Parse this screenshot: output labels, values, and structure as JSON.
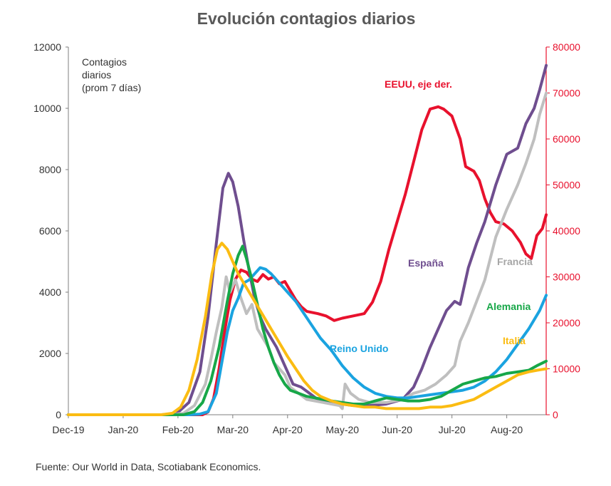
{
  "chart_data": {
    "type": "line",
    "title": "Evolución contagios diarios",
    "note": [
      "Contagios",
      "diarios",
      "(prom 7 días)"
    ],
    "source": "Fuente: Our World in Data, Scotiabank Economics.",
    "x_ticks": [
      "Dec-19",
      "Jan-20",
      "Feb-20",
      "Mar-20",
      "Apr-20",
      "May-20",
      "Jun-20",
      "Jul-20",
      "Aug-20"
    ],
    "x_range": [
      0,
      8.72
    ],
    "y_left": {
      "range": [
        0,
        12000
      ],
      "ticks": [
        "0",
        "2000",
        "4000",
        "6000",
        "8000",
        "10000",
        "12000"
      ]
    },
    "y_right": {
      "range": [
        0,
        80000
      ],
      "ticks": [
        "0",
        "10000",
        "20000",
        "30000",
        "40000",
        "50000",
        "60000",
        "70000",
        "80000"
      ],
      "color": "#e8112d"
    },
    "series": [
      {
        "name": "EEUU, eje der.",
        "axis": "right",
        "color": "#e8112d",
        "points": [
          [
            0,
            0
          ],
          [
            2.3,
            0
          ],
          [
            2.45,
            0
          ],
          [
            2.55,
            600
          ],
          [
            2.65,
            3500
          ],
          [
            2.75,
            10000
          ],
          [
            2.85,
            18000
          ],
          [
            2.95,
            25000
          ],
          [
            3.05,
            29500
          ],
          [
            3.15,
            31500
          ],
          [
            3.25,
            31000
          ],
          [
            3.35,
            29500
          ],
          [
            3.45,
            29000
          ],
          [
            3.55,
            30500
          ],
          [
            3.65,
            29500
          ],
          [
            3.75,
            30000
          ],
          [
            3.85,
            28500
          ],
          [
            3.95,
            29000
          ],
          [
            4.05,
            27000
          ],
          [
            4.15,
            25000
          ],
          [
            4.25,
            23500
          ],
          [
            4.35,
            22500
          ],
          [
            4.55,
            22000
          ],
          [
            4.7,
            21500
          ],
          [
            4.85,
            20500
          ],
          [
            5.0,
            21000
          ],
          [
            5.2,
            21500
          ],
          [
            5.4,
            22000
          ],
          [
            5.55,
            24500
          ],
          [
            5.7,
            29000
          ],
          [
            5.85,
            36000
          ],
          [
            6.0,
            42000
          ],
          [
            6.15,
            48000
          ],
          [
            6.3,
            55000
          ],
          [
            6.45,
            62000
          ],
          [
            6.6,
            66500
          ],
          [
            6.75,
            67000
          ],
          [
            6.85,
            66500
          ],
          [
            7.0,
            65000
          ],
          [
            7.15,
            60000
          ],
          [
            7.25,
            54000
          ],
          [
            7.4,
            53000
          ],
          [
            7.5,
            51000
          ],
          [
            7.6,
            47000
          ],
          [
            7.7,
            44000
          ],
          [
            7.8,
            42000
          ],
          [
            7.95,
            41500
          ],
          [
            8.1,
            40000
          ],
          [
            8.25,
            37500
          ],
          [
            8.35,
            35000
          ],
          [
            8.45,
            34000
          ],
          [
            8.55,
            39000
          ],
          [
            8.65,
            40500
          ],
          [
            8.72,
            43500
          ]
        ]
      },
      {
        "name": "España",
        "axis": "left",
        "color": "#6f4e8f",
        "points": [
          [
            0,
            0
          ],
          [
            1.7,
            0
          ],
          [
            1.85,
            20
          ],
          [
            2.0,
            80
          ],
          [
            2.2,
            400
          ],
          [
            2.4,
            1400
          ],
          [
            2.55,
            3200
          ],
          [
            2.7,
            5600
          ],
          [
            2.82,
            7400
          ],
          [
            2.92,
            7880
          ],
          [
            3.0,
            7600
          ],
          [
            3.1,
            6800
          ],
          [
            3.2,
            5700
          ],
          [
            3.3,
            4700
          ],
          [
            3.4,
            3800
          ],
          [
            3.5,
            3200
          ],
          [
            3.6,
            2800
          ],
          [
            3.7,
            2500
          ],
          [
            3.8,
            2200
          ],
          [
            3.9,
            1800
          ],
          [
            4.0,
            1400
          ],
          [
            4.1,
            1000
          ],
          [
            4.25,
            900
          ],
          [
            4.4,
            700
          ],
          [
            4.55,
            500
          ],
          [
            4.7,
            450
          ],
          [
            4.85,
            400
          ],
          [
            5.0,
            350
          ],
          [
            5.2,
            300
          ],
          [
            5.5,
            300
          ],
          [
            5.8,
            350
          ],
          [
            6.1,
            500
          ],
          [
            6.3,
            900
          ],
          [
            6.45,
            1500
          ],
          [
            6.6,
            2200
          ],
          [
            6.75,
            2800
          ],
          [
            6.9,
            3400
          ],
          [
            7.05,
            3700
          ],
          [
            7.15,
            3600
          ],
          [
            7.3,
            4800
          ],
          [
            7.45,
            5600
          ],
          [
            7.6,
            6300
          ],
          [
            7.8,
            7500
          ],
          [
            8.0,
            8500
          ],
          [
            8.2,
            8700
          ],
          [
            8.35,
            9500
          ],
          [
            8.5,
            10000
          ],
          [
            8.6,
            10600
          ],
          [
            8.72,
            11400
          ]
        ]
      },
      {
        "name": "Francia",
        "axis": "left",
        "color": "#bfbfbf",
        "points": [
          [
            0,
            0
          ],
          [
            1.9,
            0
          ],
          [
            2.1,
            50
          ],
          [
            2.3,
            300
          ],
          [
            2.5,
            1000
          ],
          [
            2.6,
            1800
          ],
          [
            2.7,
            2700
          ],
          [
            2.8,
            3500
          ],
          [
            2.88,
            4500
          ],
          [
            2.95,
            4000
          ],
          [
            3.05,
            4400
          ],
          [
            3.15,
            3800
          ],
          [
            3.25,
            3300
          ],
          [
            3.35,
            3600
          ],
          [
            3.45,
            2800
          ],
          [
            3.55,
            2500
          ],
          [
            3.65,
            2200
          ],
          [
            3.75,
            1700
          ],
          [
            3.85,
            1500
          ],
          [
            3.95,
            1300
          ],
          [
            4.05,
            900
          ],
          [
            4.2,
            700
          ],
          [
            4.35,
            500
          ],
          [
            4.5,
            450
          ],
          [
            4.65,
            400
          ],
          [
            4.8,
            350
          ],
          [
            4.95,
            300
          ],
          [
            5.0,
            200
          ],
          [
            5.05,
            1000
          ],
          [
            5.15,
            700
          ],
          [
            5.3,
            500
          ],
          [
            5.5,
            400
          ],
          [
            5.8,
            400
          ],
          [
            6.1,
            500
          ],
          [
            6.3,
            700
          ],
          [
            6.5,
            800
          ],
          [
            6.7,
            1000
          ],
          [
            6.9,
            1300
          ],
          [
            7.05,
            1600
          ],
          [
            7.15,
            2400
          ],
          [
            7.3,
            3000
          ],
          [
            7.45,
            3700
          ],
          [
            7.6,
            4400
          ],
          [
            7.8,
            5800
          ],
          [
            8.0,
            6700
          ],
          [
            8.2,
            7500
          ],
          [
            8.35,
            8200
          ],
          [
            8.5,
            9000
          ],
          [
            8.6,
            9800
          ],
          [
            8.72,
            10500
          ]
        ]
      },
      {
        "name": "Reino Unido",
        "axis": "left",
        "color": "#1aa3e0",
        "points": [
          [
            0,
            0
          ],
          [
            2.2,
            0
          ],
          [
            2.4,
            20
          ],
          [
            2.55,
            100
          ],
          [
            2.7,
            700
          ],
          [
            2.8,
            1700
          ],
          [
            2.9,
            2700
          ],
          [
            3.0,
            3400
          ],
          [
            3.1,
            3800
          ],
          [
            3.2,
            4300
          ],
          [
            3.3,
            4400
          ],
          [
            3.4,
            4600
          ],
          [
            3.5,
            4800
          ],
          [
            3.6,
            4750
          ],
          [
            3.7,
            4600
          ],
          [
            3.8,
            4400
          ],
          [
            3.9,
            4200
          ],
          [
            4.0,
            4000
          ],
          [
            4.15,
            3700
          ],
          [
            4.3,
            3300
          ],
          [
            4.45,
            2900
          ],
          [
            4.6,
            2500
          ],
          [
            4.8,
            2100
          ],
          [
            5.0,
            1600
          ],
          [
            5.2,
            1200
          ],
          [
            5.4,
            900
          ],
          [
            5.6,
            700
          ],
          [
            5.8,
            600
          ],
          [
            6.0,
            550
          ],
          [
            6.2,
            550
          ],
          [
            6.4,
            600
          ],
          [
            6.6,
            650
          ],
          [
            6.8,
            700
          ],
          [
            7.0,
            750
          ],
          [
            7.2,
            800
          ],
          [
            7.4,
            900
          ],
          [
            7.6,
            1100
          ],
          [
            7.8,
            1400
          ],
          [
            8.0,
            1800
          ],
          [
            8.2,
            2300
          ],
          [
            8.4,
            2800
          ],
          [
            8.6,
            3400
          ],
          [
            8.72,
            3900
          ]
        ]
      },
      {
        "name": "Alemania",
        "axis": "left",
        "color": "#17a748",
        "points": [
          [
            0,
            0
          ],
          [
            2.1,
            0
          ],
          [
            2.3,
            100
          ],
          [
            2.45,
            400
          ],
          [
            2.6,
            1100
          ],
          [
            2.75,
            2200
          ],
          [
            2.9,
            3700
          ],
          [
            3.0,
            4600
          ],
          [
            3.1,
            5200
          ],
          [
            3.18,
            5500
          ],
          [
            3.25,
            5100
          ],
          [
            3.35,
            4400
          ],
          [
            3.45,
            3600
          ],
          [
            3.55,
            2800
          ],
          [
            3.65,
            2200
          ],
          [
            3.75,
            1700
          ],
          [
            3.85,
            1300
          ],
          [
            3.95,
            1000
          ],
          [
            4.05,
            800
          ],
          [
            4.2,
            700
          ],
          [
            4.35,
            600
          ],
          [
            4.5,
            550
          ],
          [
            4.65,
            500
          ],
          [
            4.8,
            450
          ],
          [
            5.0,
            400
          ],
          [
            5.2,
            350
          ],
          [
            5.4,
            350
          ],
          [
            5.6,
            450
          ],
          [
            5.8,
            550
          ],
          [
            6.0,
            500
          ],
          [
            6.2,
            450
          ],
          [
            6.4,
            450
          ],
          [
            6.6,
            500
          ],
          [
            6.8,
            600
          ],
          [
            7.0,
            800
          ],
          [
            7.2,
            1000
          ],
          [
            7.4,
            1100
          ],
          [
            7.6,
            1200
          ],
          [
            7.8,
            1250
          ],
          [
            8.0,
            1350
          ],
          [
            8.2,
            1400
          ],
          [
            8.4,
            1450
          ],
          [
            8.55,
            1600
          ],
          [
            8.72,
            1750
          ]
        ]
      },
      {
        "name": "Italia",
        "axis": "left",
        "color": "#fbbc12",
        "points": [
          [
            0,
            0
          ],
          [
            1.7,
            0
          ],
          [
            1.9,
            50
          ],
          [
            2.05,
            250
          ],
          [
            2.2,
            800
          ],
          [
            2.35,
            1800
          ],
          [
            2.5,
            3200
          ],
          [
            2.62,
            4600
          ],
          [
            2.72,
            5400
          ],
          [
            2.8,
            5600
          ],
          [
            2.9,
            5400
          ],
          [
            3.0,
            5000
          ],
          [
            3.1,
            4600
          ],
          [
            3.2,
            4300
          ],
          [
            3.3,
            4000
          ],
          [
            3.4,
            3700
          ],
          [
            3.5,
            3400
          ],
          [
            3.6,
            3100
          ],
          [
            3.7,
            2800
          ],
          [
            3.8,
            2500
          ],
          [
            3.9,
            2200
          ],
          [
            4.0,
            1900
          ],
          [
            4.15,
            1500
          ],
          [
            4.3,
            1100
          ],
          [
            4.45,
            800
          ],
          [
            4.6,
            600
          ],
          [
            4.8,
            450
          ],
          [
            5.0,
            350
          ],
          [
            5.2,
            300
          ],
          [
            5.4,
            250
          ],
          [
            5.6,
            250
          ],
          [
            5.8,
            200
          ],
          [
            6.0,
            200
          ],
          [
            6.2,
            200
          ],
          [
            6.4,
            200
          ],
          [
            6.6,
            250
          ],
          [
            6.8,
            250
          ],
          [
            7.0,
            300
          ],
          [
            7.2,
            400
          ],
          [
            7.4,
            500
          ],
          [
            7.6,
            700
          ],
          [
            7.8,
            900
          ],
          [
            8.0,
            1100
          ],
          [
            8.2,
            1300
          ],
          [
            8.4,
            1400
          ],
          [
            8.55,
            1450
          ],
          [
            8.72,
            1500
          ]
        ]
      }
    ],
    "labels": [
      {
        "text": "EEUU, eje der.",
        "color": "#e8112d"
      },
      {
        "text": "España",
        "color": "#6f4e8f"
      },
      {
        "text": "Francia",
        "color": "#a6a6a6"
      },
      {
        "text": "Reino Unido",
        "color": "#1aa3e0"
      },
      {
        "text": "Alemania",
        "color": "#17a748"
      },
      {
        "text": "Italia",
        "color": "#fbbc12"
      }
    ]
  }
}
